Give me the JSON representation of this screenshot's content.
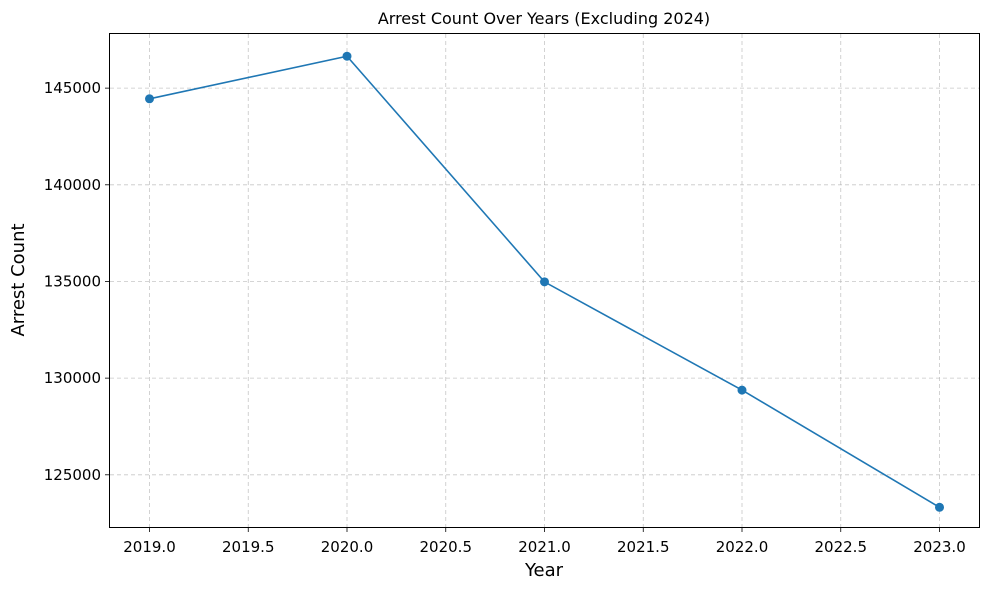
{
  "chart_data": {
    "type": "line",
    "title": "Arrest Count Over Years (Excluding 2024)",
    "xlabel": "Year",
    "ylabel": "Arrest Count",
    "xlim": [
      2018.8,
      2023.2
    ],
    "ylim": [
      122300,
      147800
    ],
    "xticks": [
      2019.0,
      2019.5,
      2020.0,
      2020.5,
      2021.0,
      2021.5,
      2022.0,
      2022.5,
      2023.0
    ],
    "xtick_labels": [
      "2019.0",
      "2019.5",
      "2020.0",
      "2020.5",
      "2021.0",
      "2021.5",
      "2022.0",
      "2022.5",
      "2023.0"
    ],
    "yticks": [
      125000,
      130000,
      135000,
      140000,
      145000
    ],
    "ytick_labels": [
      "125000",
      "130000",
      "135000",
      "140000",
      "145000"
    ],
    "grid": true,
    "series": [
      {
        "color": "#1f77b4",
        "marker": "circle",
        "x": [
          2019,
          2020,
          2021,
          2022,
          2023
        ],
        "y": [
          144450,
          146650,
          134980,
          129380,
          123320
        ]
      }
    ]
  }
}
